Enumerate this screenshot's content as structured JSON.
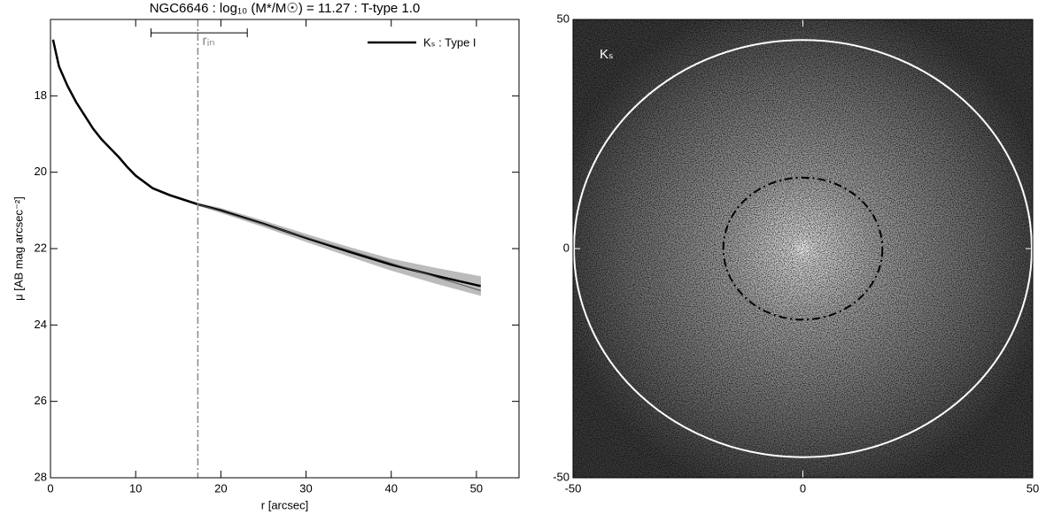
{
  "chart_data": [
    {
      "type": "line",
      "title": "NGC6646 : log₁₀ (M*/M☉) = 11.27 : T-type 1.0",
      "xlabel": "r [arcsec]",
      "ylabel": "μ [AB mag arcsec⁻²]",
      "xlim": [
        0,
        55
      ],
      "ylim": [
        28,
        16
      ],
      "xticks": [
        0,
        10,
        20,
        30,
        40,
        50
      ],
      "yticks": [
        18,
        20,
        22,
        24,
        26,
        28
      ],
      "legend": "upper right",
      "series": [
        {
          "name": "Kₛ : Type I",
          "color": "#000000",
          "band_color": "#bbbbbb",
          "x": [
            0.3,
            1,
            2,
            3,
            4,
            5,
            6,
            7,
            8,
            9,
            10,
            12,
            14,
            17.3,
            20,
            25,
            30,
            35,
            40,
            45,
            50.5
          ],
          "values": [
            16.53,
            17.23,
            17.74,
            18.16,
            18.51,
            18.86,
            19.14,
            19.37,
            19.6,
            19.86,
            20.09,
            20.42,
            20.6,
            20.84,
            21.0,
            21.35,
            21.72,
            22.08,
            22.42,
            22.7,
            22.98
          ],
          "error": [
            0.03,
            0.03,
            0.03,
            0.03,
            0.03,
            0.03,
            0.03,
            0.03,
            0.03,
            0.03,
            0.03,
            0.03,
            0.03,
            0.03,
            0.06,
            0.08,
            0.1,
            0.12,
            0.15,
            0.2,
            0.25
          ]
        },
        {
          "color": "#555555",
          "x": [
            17.3,
            50.5
          ],
          "values": [
            20.84,
            23.1
          ]
        }
      ],
      "marker": {
        "label": "rᵢₙ",
        "x": 17.3,
        "color": "#888888",
        "range": [
          11.8,
          23.1
        ],
        "range_y": 16.35
      }
    },
    {
      "type": "image",
      "label": "Kₛ",
      "xlim": [
        -50,
        50
      ],
      "ylim": [
        -50,
        50
      ],
      "xticks": [
        -50,
        0,
        50
      ],
      "yticks": [
        -50,
        0,
        50
      ],
      "ellipses": [
        {
          "cx": 0,
          "cy": 0,
          "rx": 49.8,
          "ry": 45.5,
          "color": "#ffffff",
          "style": "solid"
        },
        {
          "cx": 0,
          "cy": 0,
          "rx": 17.3,
          "ry": 15.5,
          "color": "#000000",
          "style": "dashdot"
        }
      ]
    }
  ]
}
